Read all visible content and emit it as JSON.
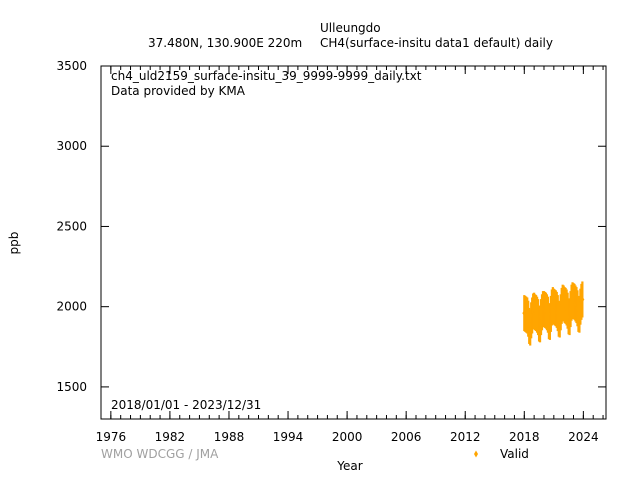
{
  "header": {
    "station": "Ulleungdo",
    "location": "37.480N, 130.900E 220m",
    "parameter": "CH4(surface-insitu data1 default) daily"
  },
  "annotations": {
    "filename": "ch4_uld2159_surface-insitu_39_9999-9999_daily.txt",
    "provider": "Data provided by KMA",
    "period": "2018/01/01 - 2023/12/31",
    "credit": "WMO WDCGG / JMA"
  },
  "colors": {
    "series": "#ffa500",
    "axis": "#000000",
    "credit": "#a0a0a0"
  },
  "chart_data": {
    "type": "scatter",
    "xlabel": "Year",
    "ylabel": "ppb",
    "xlim": [
      1975.0,
      2026.3
    ],
    "ylim": [
      1300,
      3500
    ],
    "xticks": [
      1976,
      1982,
      1988,
      1994,
      2000,
      2006,
      2012,
      2018,
      2024
    ],
    "yticks": [
      1500,
      2000,
      2500,
      3000,
      3500
    ],
    "legend": {
      "position": "bottom-right",
      "label": "Valid"
    },
    "grid": false,
    "series": [
      {
        "name": "Valid",
        "x": [
          2018.0,
          2018.1,
          2018.2,
          2018.3,
          2018.4,
          2018.5,
          2018.6,
          2018.7,
          2018.8,
          2018.9,
          2019.0,
          2019.1,
          2019.2,
          2019.3,
          2019.4,
          2019.5,
          2019.6,
          2019.7,
          2019.8,
          2019.9,
          2020.0,
          2020.1,
          2020.2,
          2020.3,
          2020.4,
          2020.5,
          2020.6,
          2020.7,
          2020.8,
          2020.9,
          2021.0,
          2021.1,
          2021.2,
          2021.3,
          2021.4,
          2021.5,
          2021.6,
          2021.7,
          2021.8,
          2021.9,
          2022.0,
          2022.1,
          2022.2,
          2022.3,
          2022.4,
          2022.5,
          2022.6,
          2022.7,
          2022.8,
          2022.9,
          2023.0,
          2023.1,
          2023.2,
          2023.3,
          2023.4,
          2023.5,
          2023.6,
          2023.7,
          2023.8,
          2023.9
        ],
        "y": [
          1960,
          1955,
          1950,
          1945,
          1925,
          1880,
          1870,
          1915,
          1945,
          1970,
          1975,
          1965,
          1960,
          1950,
          1935,
          1895,
          1890,
          1935,
          1965,
          1985,
          1985,
          1980,
          1975,
          1965,
          1950,
          1910,
          1905,
          1955,
          1995,
          2010,
          2000,
          1995,
          1990,
          1980,
          1960,
          1925,
          1920,
          1965,
          2005,
          2025,
          2020,
          2010,
          2005,
          1995,
          1975,
          1940,
          1935,
          1985,
          2025,
          2040,
          2035,
          2030,
          2020,
          2010,
          1990,
          1955,
          1950,
          2000,
          2030,
          2045
        ]
      }
    ]
  }
}
